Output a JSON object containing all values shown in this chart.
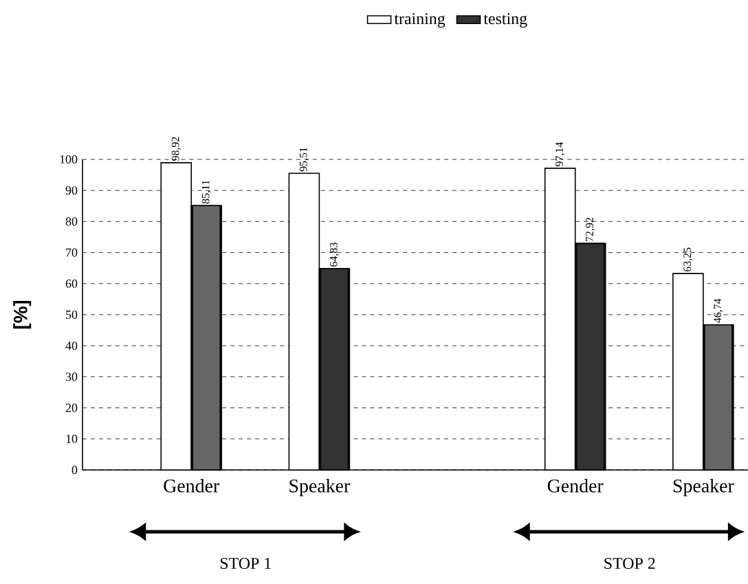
{
  "chart_data": {
    "type": "bar",
    "ylabel": "[%]",
    "categories": [
      "Gender",
      "Speaker",
      null,
      "Gender",
      "Speaker"
    ],
    "series": [
      {
        "name": "training",
        "color": "#ffffff",
        "values": [
          98.92,
          95.51,
          null,
          97.14,
          63.25
        ],
        "value_labels": [
          "98,92",
          "95,51",
          null,
          "97,14",
          "63,25"
        ]
      },
      {
        "name": "testing",
        "color": "#333333",
        "colors": [
          "#666666",
          "#333333",
          null,
          "#333333",
          "#666666"
        ],
        "values": [
          85.11,
          64.83,
          null,
          72.92,
          46.74
        ],
        "value_labels": [
          "85,11",
          "64,83",
          null,
          "72,92",
          "46,74"
        ]
      }
    ],
    "ylim": [
      0,
      100
    ],
    "yticks": [
      0,
      10,
      20,
      30,
      40,
      50,
      60,
      70,
      80,
      90,
      100
    ],
    "grid": "y",
    "legend": "top",
    "annotations": [
      "STOP 1",
      "STOP 2"
    ]
  }
}
